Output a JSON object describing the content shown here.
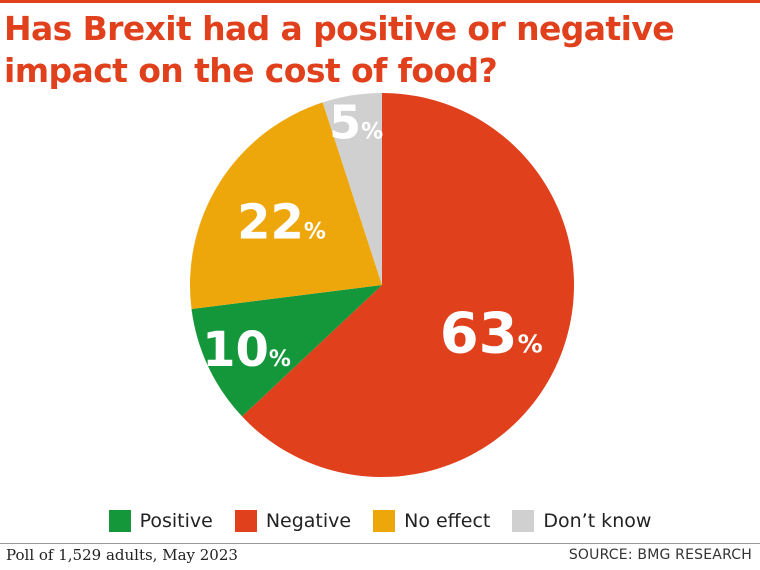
{
  "title": "Has Brexit had a positive or negative impact on the cost of food?",
  "note": "Poll of 1,529 adults, May 2023",
  "source": "SOURCE: BMG RESEARCH",
  "colors": {
    "title": "#e0401c",
    "positive": "#13973a",
    "negative": "#e0401c",
    "no_effect": "#eea70b",
    "dont_know": "#d0d0d0"
  },
  "chart_data": {
    "type": "pie",
    "title": "Has Brexit had a positive or negative impact on the cost of food?",
    "unit": "%",
    "slices": [
      {
        "label": "Negative",
        "value": 63,
        "color": "#e0401c"
      },
      {
        "label": "Positive",
        "value": 10,
        "color": "#13973a"
      },
      {
        "label": "No effect",
        "value": 22,
        "color": "#eea70b"
      },
      {
        "label": "Don’t know",
        "value": 5,
        "color": "#d0d0d0"
      }
    ],
    "legend": [
      "Positive",
      "Negative",
      "No effect",
      "Don’t know"
    ],
    "legend_placement": "bottom"
  }
}
